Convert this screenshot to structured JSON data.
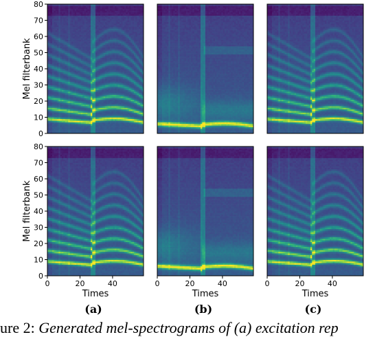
{
  "chart_data": [
    {
      "type": "heatmap",
      "panel": "a-top",
      "ylabel": "Mel filterbank",
      "xlabel": "",
      "ylim": [
        0,
        80
      ],
      "xlim": [
        0,
        59
      ],
      "yticks": [
        "0",
        "10",
        "20",
        "30",
        "40",
        "50",
        "60",
        "70",
        "80"
      ],
      "xticks": [],
      "harmonics": "dense",
      "segment_boundary": 28
    },
    {
      "type": "heatmap",
      "panel": "b-top",
      "ylabel": "",
      "xlabel": "",
      "ylim": [
        0,
        80
      ],
      "xlim": [
        0,
        59
      ],
      "yticks": [],
      "xticks": [],
      "harmonics": "sparse",
      "segment_boundary": 28
    },
    {
      "type": "heatmap",
      "panel": "c-top",
      "ylabel": "",
      "xlabel": "",
      "ylim": [
        0,
        80
      ],
      "xlim": [
        0,
        59
      ],
      "yticks": [],
      "xticks": [],
      "harmonics": "dense",
      "segment_boundary": 28
    },
    {
      "type": "heatmap",
      "panel": "a-bottom",
      "ylabel": "Mel filterbank",
      "xlabel": "Times",
      "ylim": [
        0,
        80
      ],
      "xlim": [
        0,
        59
      ],
      "yticks": [
        "0",
        "10",
        "20",
        "30",
        "40",
        "50",
        "60",
        "70",
        "80"
      ],
      "xticks": [
        "0",
        "20",
        "40"
      ],
      "harmonics": "dense",
      "segment_boundary": 28
    },
    {
      "type": "heatmap",
      "panel": "b-bottom",
      "ylabel": "",
      "xlabel": "Times",
      "ylim": [
        0,
        80
      ],
      "xlim": [
        0,
        59
      ],
      "yticks": [],
      "xticks": [
        "0",
        "20",
        "40"
      ],
      "harmonics": "sparse",
      "segment_boundary": 28
    },
    {
      "type": "heatmap",
      "panel": "c-bottom",
      "ylabel": "",
      "xlabel": "Times",
      "ylim": [
        0,
        80
      ],
      "xlim": [
        0,
        59
      ],
      "yticks": [],
      "xticks": [
        "0",
        "20",
        "40"
      ],
      "harmonics": "dense",
      "segment_boundary": 28
    }
  ],
  "panel_labels": [
    "(a)",
    "(b)",
    "(c)"
  ],
  "caption": {
    "number": "ure 2:",
    "text": "Generated mel-spectrograms of (a) excitation rep"
  },
  "colors": {
    "colormap": "viridis",
    "low": "#440154",
    "mid": "#21918c",
    "high": "#fde725"
  }
}
